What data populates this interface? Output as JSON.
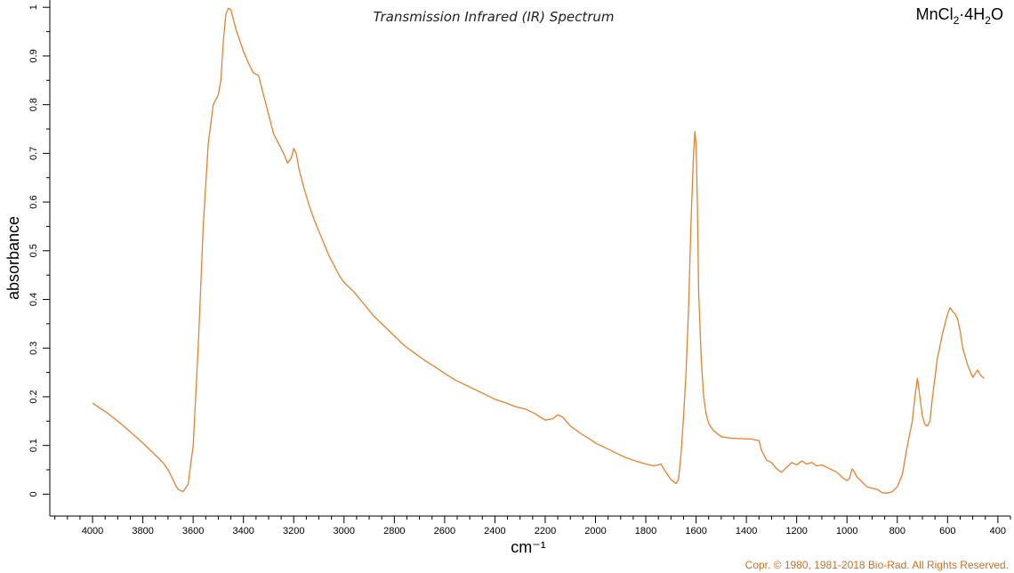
{
  "chart_data": {
    "type": "line",
    "title": "Transmission Infrared (IR) Spectrum",
    "compound": {
      "base": "MnCl",
      "sub1": "2",
      "mid": "·4H",
      "sub2": "2",
      "end": "O"
    },
    "xlabel": "cm⁻¹",
    "ylabel": "absorbance",
    "copyright": "Copr. © 1980, 1981-2018  Bio-Rad.  All Rights Reserved.",
    "x_reversed": true,
    "xlim": [
      4170,
      350
    ],
    "ylim": [
      -0.045,
      1.015
    ],
    "x_ticks": [
      "4000",
      "3800",
      "3600",
      "3400",
      "3200",
      "3000",
      "2800",
      "2600",
      "2400",
      "2200",
      "2000",
      "1800",
      "1600",
      "1400",
      "1200",
      "1000",
      "800",
      "600",
      "400"
    ],
    "y_ticks": [
      "0",
      "0.1",
      "0.2",
      "0.3",
      "0.4",
      "0.5",
      "0.6",
      "0.7",
      "0.8",
      "0.9",
      "1"
    ],
    "line_color": "#e8802e",
    "series": [
      {
        "x": [
          4000,
          3950,
          3900,
          3850,
          3800,
          3750,
          3720,
          3700,
          3680,
          3670,
          3660,
          3640,
          3620,
          3600,
          3580,
          3560,
          3540,
          3520,
          3500,
          3490,
          3480,
          3470,
          3460,
          3450,
          3440,
          3430,
          3420,
          3400,
          3380,
          3360,
          3340,
          3320,
          3300,
          3280,
          3260,
          3240,
          3225,
          3210,
          3200,
          3190,
          3180,
          3160,
          3140,
          3120,
          3100,
          3080,
          3060,
          3040,
          3020,
          3000,
          2960,
          2920,
          2880,
          2840,
          2800,
          2760,
          2720,
          2680,
          2640,
          2600,
          2560,
          2520,
          2480,
          2440,
          2400,
          2360,
          2320,
          2280,
          2240,
          2200,
          2170,
          2150,
          2130,
          2100,
          2060,
          2020,
          2000,
          1960,
          1920,
          1880,
          1840,
          1800,
          1770,
          1750,
          1740,
          1720,
          1700,
          1680,
          1670,
          1660,
          1650,
          1640,
          1630,
          1620,
          1610,
          1605,
          1600,
          1595,
          1590,
          1580,
          1570,
          1560,
          1550,
          1530,
          1500,
          1460,
          1420,
          1380,
          1350,
          1340,
          1320,
          1300,
          1280,
          1260,
          1240,
          1220,
          1200,
          1180,
          1160,
          1140,
          1120,
          1100,
          1080,
          1060,
          1040,
          1020,
          1000,
          990,
          980,
          970,
          960,
          940,
          920,
          900,
          880,
          860,
          840,
          820,
          800,
          780,
          760,
          740,
          730,
          720,
          710,
          700,
          690,
          680,
          670,
          660,
          640,
          620,
          600,
          590,
          580,
          570,
          560,
          550,
          540,
          520,
          500,
          480,
          470,
          460,
          455
        ],
        "y": [
          0.187,
          0.17,
          0.15,
          0.128,
          0.105,
          0.08,
          0.065,
          0.05,
          0.03,
          0.018,
          0.01,
          0.005,
          0.02,
          0.1,
          0.3,
          0.55,
          0.72,
          0.8,
          0.82,
          0.85,
          0.93,
          0.985,
          0.998,
          0.995,
          0.975,
          0.955,
          0.94,
          0.91,
          0.885,
          0.865,
          0.86,
          0.82,
          0.78,
          0.74,
          0.72,
          0.7,
          0.68,
          0.69,
          0.71,
          0.7,
          0.67,
          0.63,
          0.595,
          0.565,
          0.54,
          0.515,
          0.49,
          0.47,
          0.45,
          0.435,
          0.415,
          0.39,
          0.365,
          0.345,
          0.325,
          0.305,
          0.29,
          0.275,
          0.262,
          0.248,
          0.235,
          0.225,
          0.215,
          0.205,
          0.195,
          0.188,
          0.18,
          0.175,
          0.165,
          0.152,
          0.155,
          0.163,
          0.158,
          0.14,
          0.125,
          0.112,
          0.105,
          0.095,
          0.085,
          0.075,
          0.068,
          0.062,
          0.058,
          0.06,
          0.062,
          0.045,
          0.03,
          0.022,
          0.03,
          0.08,
          0.16,
          0.25,
          0.38,
          0.56,
          0.7,
          0.745,
          0.72,
          0.6,
          0.42,
          0.28,
          0.2,
          0.165,
          0.145,
          0.13,
          0.118,
          0.115,
          0.114,
          0.113,
          0.11,
          0.09,
          0.07,
          0.065,
          0.052,
          0.045,
          0.055,
          0.065,
          0.06,
          0.068,
          0.062,
          0.065,
          0.058,
          0.06,
          0.055,
          0.05,
          0.045,
          0.035,
          0.028,
          0.032,
          0.052,
          0.045,
          0.035,
          0.025,
          0.015,
          0.012,
          0.01,
          0.003,
          0.002,
          0.005,
          0.015,
          0.04,
          0.1,
          0.15,
          0.2,
          0.238,
          0.2,
          0.16,
          0.143,
          0.14,
          0.15,
          0.2,
          0.28,
          0.33,
          0.37,
          0.383,
          0.375,
          0.37,
          0.36,
          0.335,
          0.3,
          0.265,
          0.24,
          0.255,
          0.245,
          0.24,
          0.238
        ]
      }
    ]
  }
}
